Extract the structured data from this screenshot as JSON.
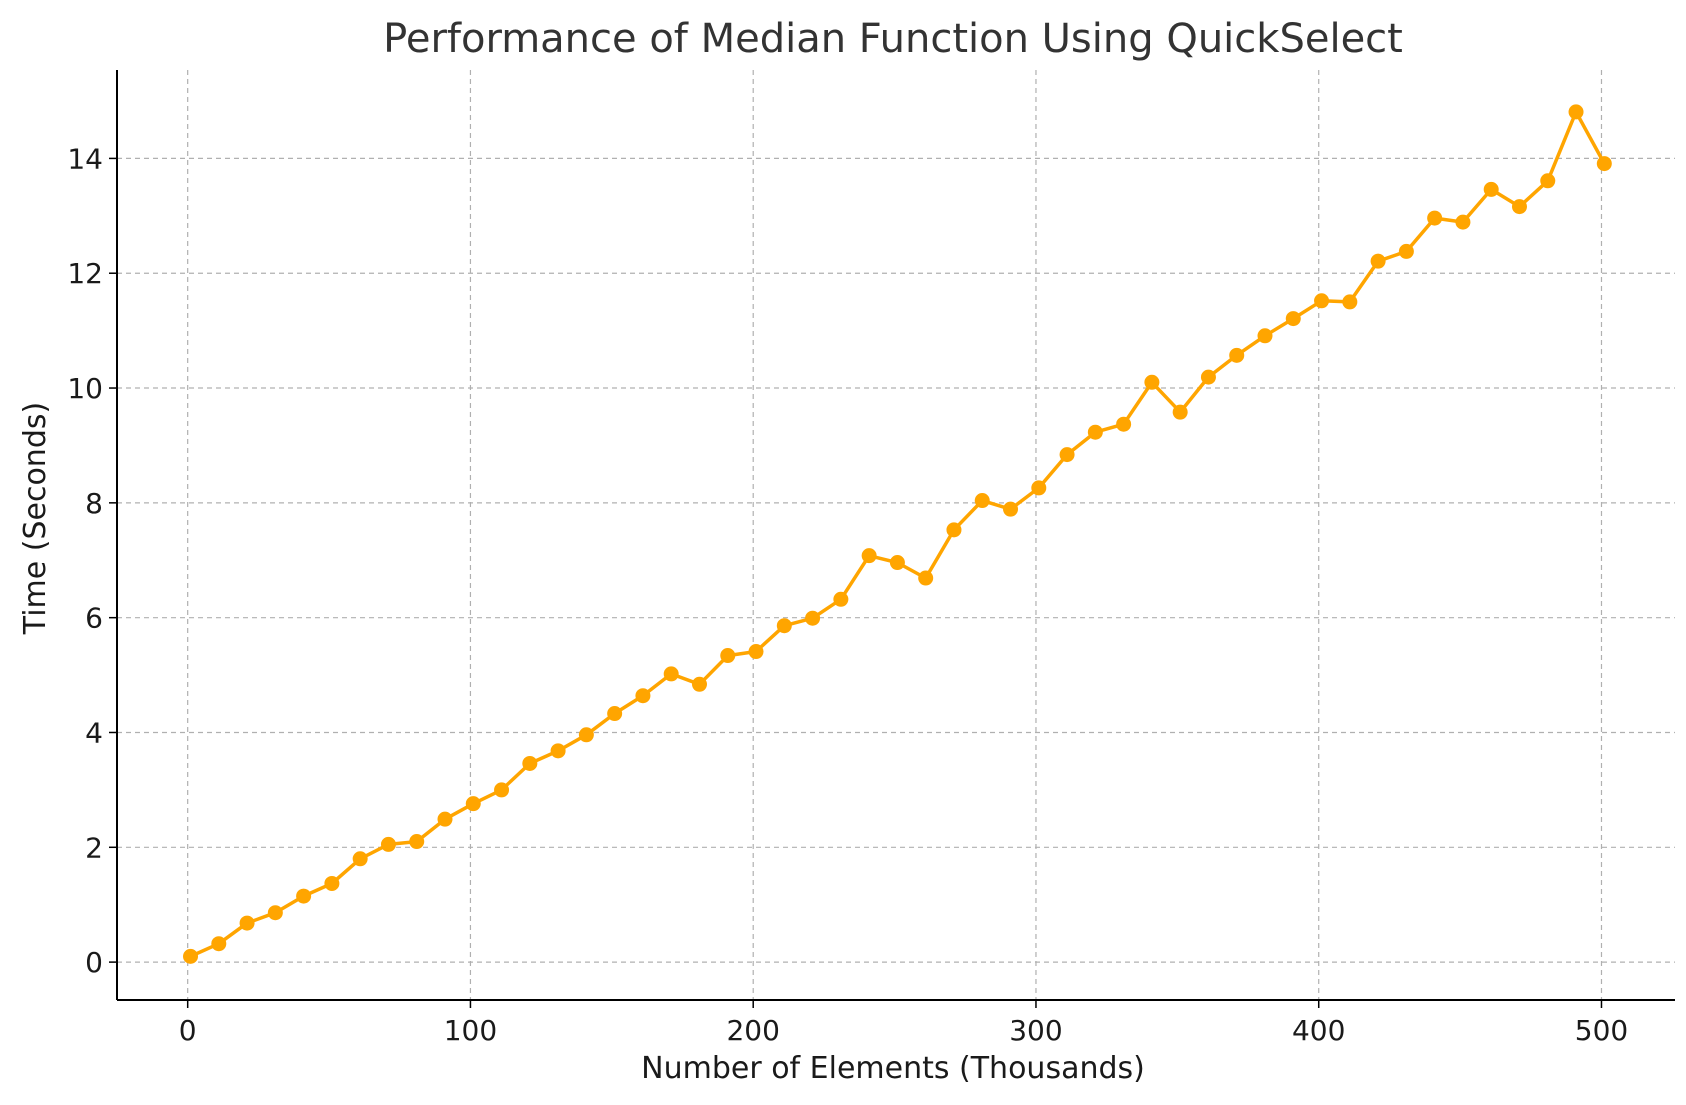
{
  "chart_data": {
    "type": "line",
    "title": "Performance of Median Function Using QuickSelect",
    "xlabel": "Number of Elements (Thousands)",
    "ylabel": "Time (Seconds)",
    "xlim": [
      -25,
      526
    ],
    "ylim": [
      -0.66,
      15.54
    ],
    "xticks": [
      0,
      100,
      200,
      300,
      400,
      500
    ],
    "yticks": [
      0,
      2,
      4,
      6,
      8,
      10,
      12,
      14
    ],
    "grid": true,
    "grid_style": "dashed",
    "line_color": "#FFA500",
    "axis_color": "#000000",
    "grid_color": "#b0b0b0",
    "text_color": "#333333",
    "series": [
      {
        "x": [
          1,
          11,
          21,
          31,
          41,
          51,
          61,
          71,
          81,
          91,
          101,
          111,
          121,
          131,
          141,
          151,
          161,
          171,
          181,
          191,
          201,
          211,
          221,
          231,
          241,
          251,
          261,
          271,
          281,
          291,
          301,
          311,
          321,
          331,
          341,
          351,
          361,
          371,
          381,
          391,
          401,
          411,
          421,
          431,
          441,
          451,
          461,
          471,
          481,
          491,
          501
        ],
        "values": [
          0.1,
          0.32,
          0.68,
          0.86,
          1.15,
          1.37,
          1.8,
          2.05,
          2.1,
          2.49,
          2.76,
          3.0,
          3.46,
          3.68,
          3.96,
          4.33,
          4.64,
          5.02,
          4.84,
          5.34,
          5.41,
          5.86,
          5.99,
          6.32,
          7.08,
          6.96,
          6.69,
          7.53,
          8.04,
          7.89,
          8.26,
          8.84,
          9.23,
          9.37,
          10.1,
          9.58,
          10.19,
          10.57,
          10.91,
          11.21,
          11.52,
          11.5,
          12.21,
          12.38,
          12.96,
          12.89,
          13.46,
          13.16,
          13.61,
          14.81,
          13.91
        ]
      }
    ]
  }
}
